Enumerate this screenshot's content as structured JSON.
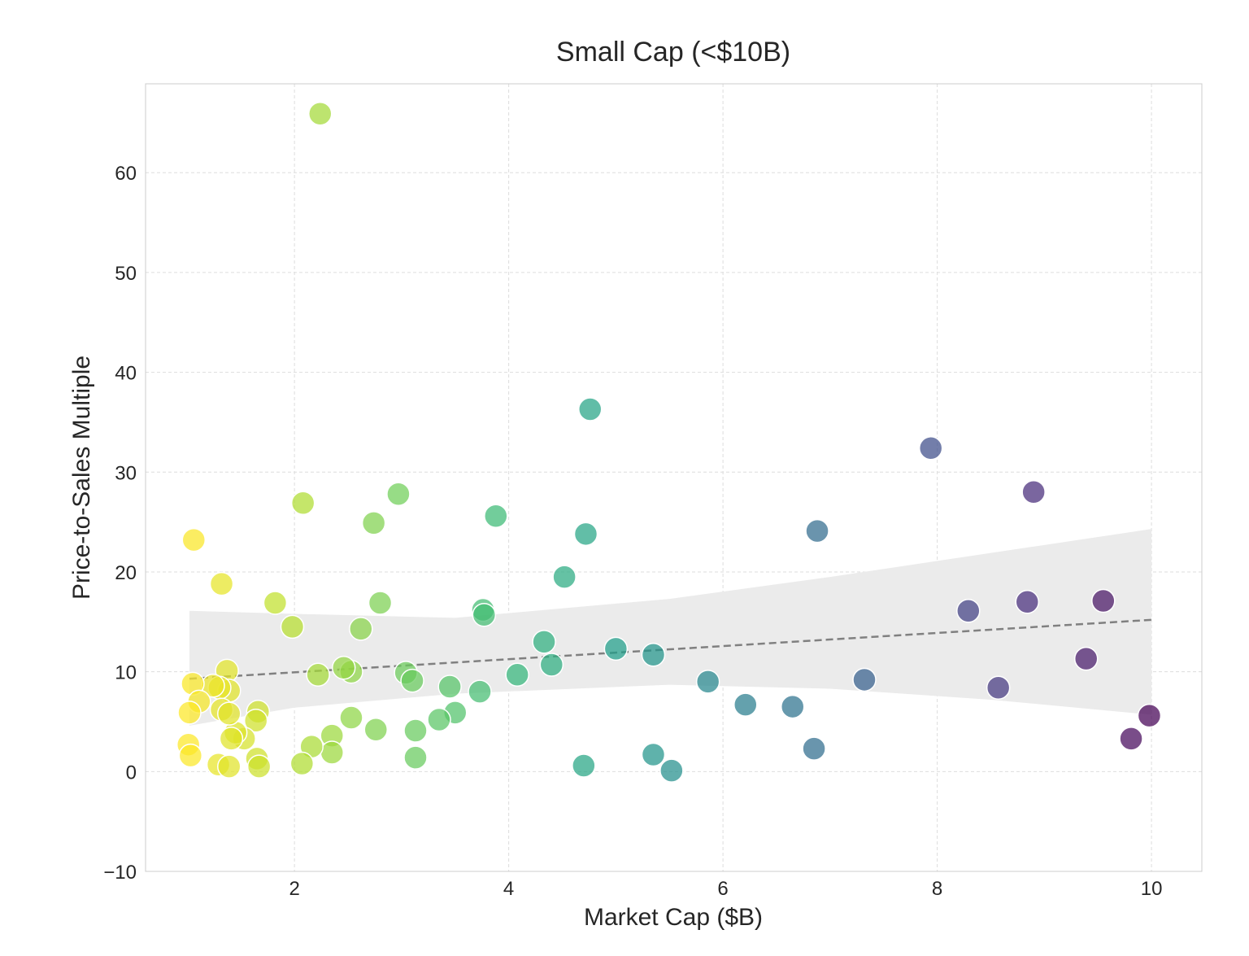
{
  "chart_data": {
    "type": "scatter",
    "title": "Small Cap (<$10B)",
    "xlabel": "Market Cap ($B)",
    "ylabel": "Price-to-Sales Multiple",
    "xlim": [
      0.61,
      10.47
    ],
    "ylim": [
      -10,
      68.9
    ],
    "xticks": [
      2,
      4,
      6,
      8,
      10
    ],
    "yticks": [
      -10,
      0,
      10,
      20,
      30,
      40,
      50,
      60
    ],
    "grid": true,
    "colormap": "viridis_r (by market cap)",
    "points": [
      [
        2.24,
        65.9
      ],
      [
        1.06,
        23.2
      ],
      [
        1.32,
        18.8
      ],
      [
        2.08,
        26.9
      ],
      [
        2.97,
        27.8
      ],
      [
        2.74,
        24.9
      ],
      [
        1.82,
        16.9
      ],
      [
        1.98,
        14.5
      ],
      [
        2.8,
        16.9
      ],
      [
        2.62,
        14.3
      ],
      [
        4.76,
        36.3
      ],
      [
        3.88,
        25.6
      ],
      [
        4.72,
        23.8
      ],
      [
        4.52,
        19.5
      ],
      [
        3.76,
        16.2
      ],
      [
        3.77,
        15.7
      ],
      [
        4.33,
        13.0
      ],
      [
        4.4,
        10.7
      ],
      [
        5.0,
        12.3
      ],
      [
        5.35,
        11.7
      ],
      [
        5.86,
        9.0
      ],
      [
        6.21,
        6.7
      ],
      [
        6.65,
        6.5
      ],
      [
        6.85,
        2.3
      ],
      [
        6.88,
        24.1
      ],
      [
        7.32,
        9.2
      ],
      [
        7.94,
        32.4
      ],
      [
        8.29,
        16.1
      ],
      [
        8.57,
        8.4
      ],
      [
        8.84,
        17.0
      ],
      [
        8.9,
        28.0
      ],
      [
        9.39,
        11.3
      ],
      [
        9.55,
        17.1
      ],
      [
        9.81,
        3.3
      ],
      [
        9.98,
        5.6
      ],
      [
        5.52,
        0.1
      ],
      [
        5.35,
        1.7
      ],
      [
        4.7,
        0.6
      ],
      [
        4.08,
        9.7
      ],
      [
        3.73,
        8.0
      ],
      [
        3.45,
        8.5
      ],
      [
        3.5,
        5.9
      ],
      [
        3.35,
        5.2
      ],
      [
        3.13,
        4.1
      ],
      [
        3.13,
        1.4
      ],
      [
        3.04,
        9.9
      ],
      [
        3.1,
        9.1
      ],
      [
        2.76,
        4.2
      ],
      [
        2.53,
        5.4
      ],
      [
        2.53,
        10.0
      ],
      [
        2.46,
        10.4
      ],
      [
        2.22,
        9.7
      ],
      [
        2.35,
        3.6
      ],
      [
        2.35,
        1.9
      ],
      [
        2.16,
        2.5
      ],
      [
        2.07,
        0.8
      ],
      [
        1.66,
        6.0
      ],
      [
        1.64,
        5.1
      ],
      [
        1.65,
        1.3
      ],
      [
        1.67,
        0.5
      ],
      [
        1.53,
        3.3
      ],
      [
        1.45,
        3.9
      ],
      [
        1.41,
        3.3
      ],
      [
        1.37,
        10.1
      ],
      [
        1.39,
        8.1
      ],
      [
        1.3,
        8.4
      ],
      [
        1.32,
        6.2
      ],
      [
        1.39,
        5.8
      ],
      [
        1.29,
        0.7
      ],
      [
        1.39,
        0.5
      ],
      [
        1.24,
        8.6
      ],
      [
        1.05,
        8.8
      ],
      [
        1.11,
        7.0
      ],
      [
        1.02,
        5.9
      ],
      [
        1.01,
        2.7
      ],
      [
        1.03,
        1.6
      ]
    ],
    "regression": {
      "x": [
        1.02,
        10.0
      ],
      "y": [
        9.3,
        15.2
      ]
    },
    "confidence_band": {
      "x": [
        1.02,
        2.0,
        3.5,
        5.5,
        7.0,
        8.5,
        10.0
      ],
      "upper": [
        16.1,
        15.8,
        15.4,
        17.3,
        19.5,
        21.9,
        24.3
      ],
      "lower": [
        4.6,
        6.4,
        7.8,
        8.7,
        8.3,
        7.2,
        5.7
      ]
    },
    "colors": {
      "band": "#ebebeb",
      "line": "#808080",
      "grid": "#dddddd",
      "frame": "#cccccc"
    }
  }
}
